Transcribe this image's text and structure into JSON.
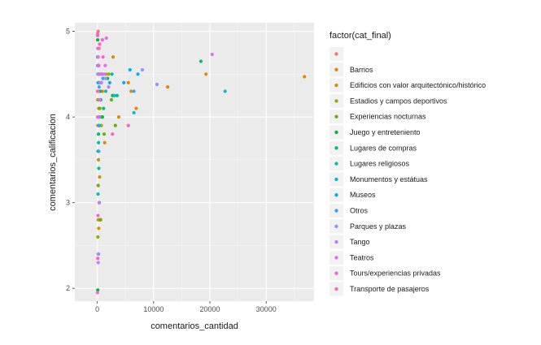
{
  "chart_data": {
    "type": "scatter",
    "xlabel": "comentarios_cantidad",
    "ylabel": "comentarios_calificacion",
    "xlim": [
      -4000,
      38500
    ],
    "ylim": [
      1.85,
      5.1
    ],
    "x_ticks": [
      "0",
      "10000",
      "20000",
      "30000"
    ],
    "y_ticks": [
      "2",
      "3",
      "4",
      "5"
    ],
    "grid": true,
    "legend_title": "factor(cat_final)",
    "legend_position": "right",
    "series": [
      {
        "name": "",
        "color": "#F8766D",
        "points": [
          [
            30,
            4.3
          ],
          [
            50,
            4.0
          ],
          [
            80,
            3.9
          ],
          [
            120,
            4.5
          ],
          [
            150,
            5.0
          ],
          [
            300,
            4.8
          ],
          [
            600,
            4.2
          ]
        ]
      },
      {
        "name": "Barrios",
        "color": "#E58700",
        "points": [
          [
            200,
            3.8
          ],
          [
            450,
            4.1
          ],
          [
            900,
            4.3
          ],
          [
            3800,
            4.0
          ],
          [
            5500,
            4.4
          ],
          [
            6900,
            4.1
          ],
          [
            12500,
            4.35
          ],
          [
            19300,
            4.5
          ],
          [
            36800,
            4.47
          ],
          [
            600,
            2.8
          ],
          [
            250,
            2.7
          ],
          [
            1300,
            3.7
          ]
        ]
      },
      {
        "name": "Edificios con valor arquitectónico/histórico",
        "color": "#C99800",
        "points": [
          [
            100,
            4.6
          ],
          [
            500,
            4.2
          ],
          [
            1500,
            4.5
          ],
          [
            2800,
            4.7
          ],
          [
            6000,
            4.3
          ],
          [
            400,
            3.3
          ],
          [
            150,
            2.8
          ],
          [
            700,
            4.0
          ]
        ]
      },
      {
        "name": "Estadios y campos deportivos",
        "color": "#A3A500",
        "points": [
          [
            80,
            4.2
          ],
          [
            300,
            4.5
          ],
          [
            2000,
            4.5
          ],
          [
            700,
            3.9
          ],
          [
            200,
            3.5
          ],
          [
            100,
            2.6
          ]
        ]
      },
      {
        "name": "Experiencias nocturnas",
        "color": "#6BB100",
        "points": [
          [
            50,
            4.7
          ],
          [
            250,
            4.1
          ],
          [
            700,
            4.4
          ],
          [
            1200,
            3.8
          ],
          [
            2500,
            4.2
          ],
          [
            3200,
            3.9
          ],
          [
            150,
            3.2
          ],
          [
            500,
            2.8
          ]
        ]
      },
      {
        "name": "Juego y entreteniento",
        "color": "#00BA38",
        "points": [
          [
            60,
            4.9
          ],
          [
            200,
            4.6
          ],
          [
            500,
            4.3
          ],
          [
            900,
            4.0
          ],
          [
            1800,
            4.45
          ],
          [
            2700,
            4.25
          ],
          [
            120,
            3.6
          ],
          [
            350,
            3.0
          ],
          [
            80,
            1.98
          ]
        ]
      },
      {
        "name": "Lugares de compras",
        "color": "#00BF7D",
        "points": [
          [
            100,
            4.5
          ],
          [
            400,
            4.2
          ],
          [
            1100,
            4.1
          ],
          [
            3500,
            4.25
          ],
          [
            18400,
            4.65
          ],
          [
            250,
            3.4
          ],
          [
            180,
            3.8
          ]
        ]
      },
      {
        "name": "Lugares religiosos",
        "color": "#00C0AF",
        "points": [
          [
            80,
            4.7
          ],
          [
            350,
            4.4
          ],
          [
            1500,
            4.3
          ],
          [
            2600,
            4.5
          ],
          [
            200,
            3.7
          ],
          [
            120,
            3.1
          ]
        ]
      },
      {
        "name": "Monumentos y estátuas",
        "color": "#00BCD8",
        "points": [
          [
            120,
            4.4
          ],
          [
            600,
            4.2
          ],
          [
            3000,
            4.25
          ],
          [
            6500,
            4.05
          ],
          [
            22700,
            4.3
          ],
          [
            300,
            3.9
          ]
        ]
      },
      {
        "name": "Museos",
        "color": "#00B0F6",
        "points": [
          [
            150,
            4.3
          ],
          [
            800,
            4.5
          ],
          [
            2200,
            4.4
          ],
          [
            4700,
            4.4
          ],
          [
            5800,
            4.55
          ],
          [
            7200,
            4.5
          ],
          [
            350,
            4.0
          ],
          [
            180,
            2.4
          ]
        ]
      },
      {
        "name": "Otros",
        "color": "#35A2FF",
        "points": [
          [
            60,
            4.6
          ],
          [
            300,
            4.35
          ],
          [
            1000,
            4.45
          ],
          [
            6500,
            4.3
          ],
          [
            250,
            3.6
          ]
        ]
      },
      {
        "name": "Parques y plazas",
        "color": "#9590FF",
        "points": [
          [
            100,
            4.5
          ],
          [
            700,
            4.4
          ],
          [
            1500,
            4.45
          ],
          [
            8000,
            4.55
          ],
          [
            10600,
            4.38
          ],
          [
            400,
            4.0
          ],
          [
            200,
            2.4
          ]
        ]
      },
      {
        "name": "Tango",
        "color": "#C77CFF",
        "points": [
          [
            200,
            4.6
          ],
          [
            500,
            4.4
          ],
          [
            1200,
            4.5
          ],
          [
            2000,
            4.35
          ],
          [
            300,
            3.0
          ],
          [
            150,
            2.3
          ]
        ]
      },
      {
        "name": "Teatros",
        "color": "#E76BF3",
        "points": [
          [
            150,
            4.7
          ],
          [
            600,
            4.5
          ],
          [
            1400,
            4.6
          ],
          [
            20400,
            4.73
          ],
          [
            400,
            4.2
          ]
        ]
      },
      {
        "name": "Tours/experiencias privadas",
        "color": "#FA62DB",
        "points": [
          [
            40,
            4.95
          ],
          [
            90,
            4.8
          ],
          [
            250,
            4.6
          ],
          [
            600,
            4.5
          ],
          [
            900,
            4.9
          ],
          [
            1600,
            4.92
          ],
          [
            70,
            4.0
          ],
          [
            30,
            1.95
          ],
          [
            120,
            2.85
          ]
        ]
      },
      {
        "name": "Transporte de pasajeros",
        "color": "#FF62BC",
        "points": [
          [
            60,
            4.97
          ],
          [
            400,
            4.85
          ],
          [
            1000,
            4.7
          ],
          [
            2700,
            3.8
          ],
          [
            5500,
            3.9
          ],
          [
            80,
            2.35
          ],
          [
            160,
            4.3
          ]
        ]
      }
    ]
  }
}
